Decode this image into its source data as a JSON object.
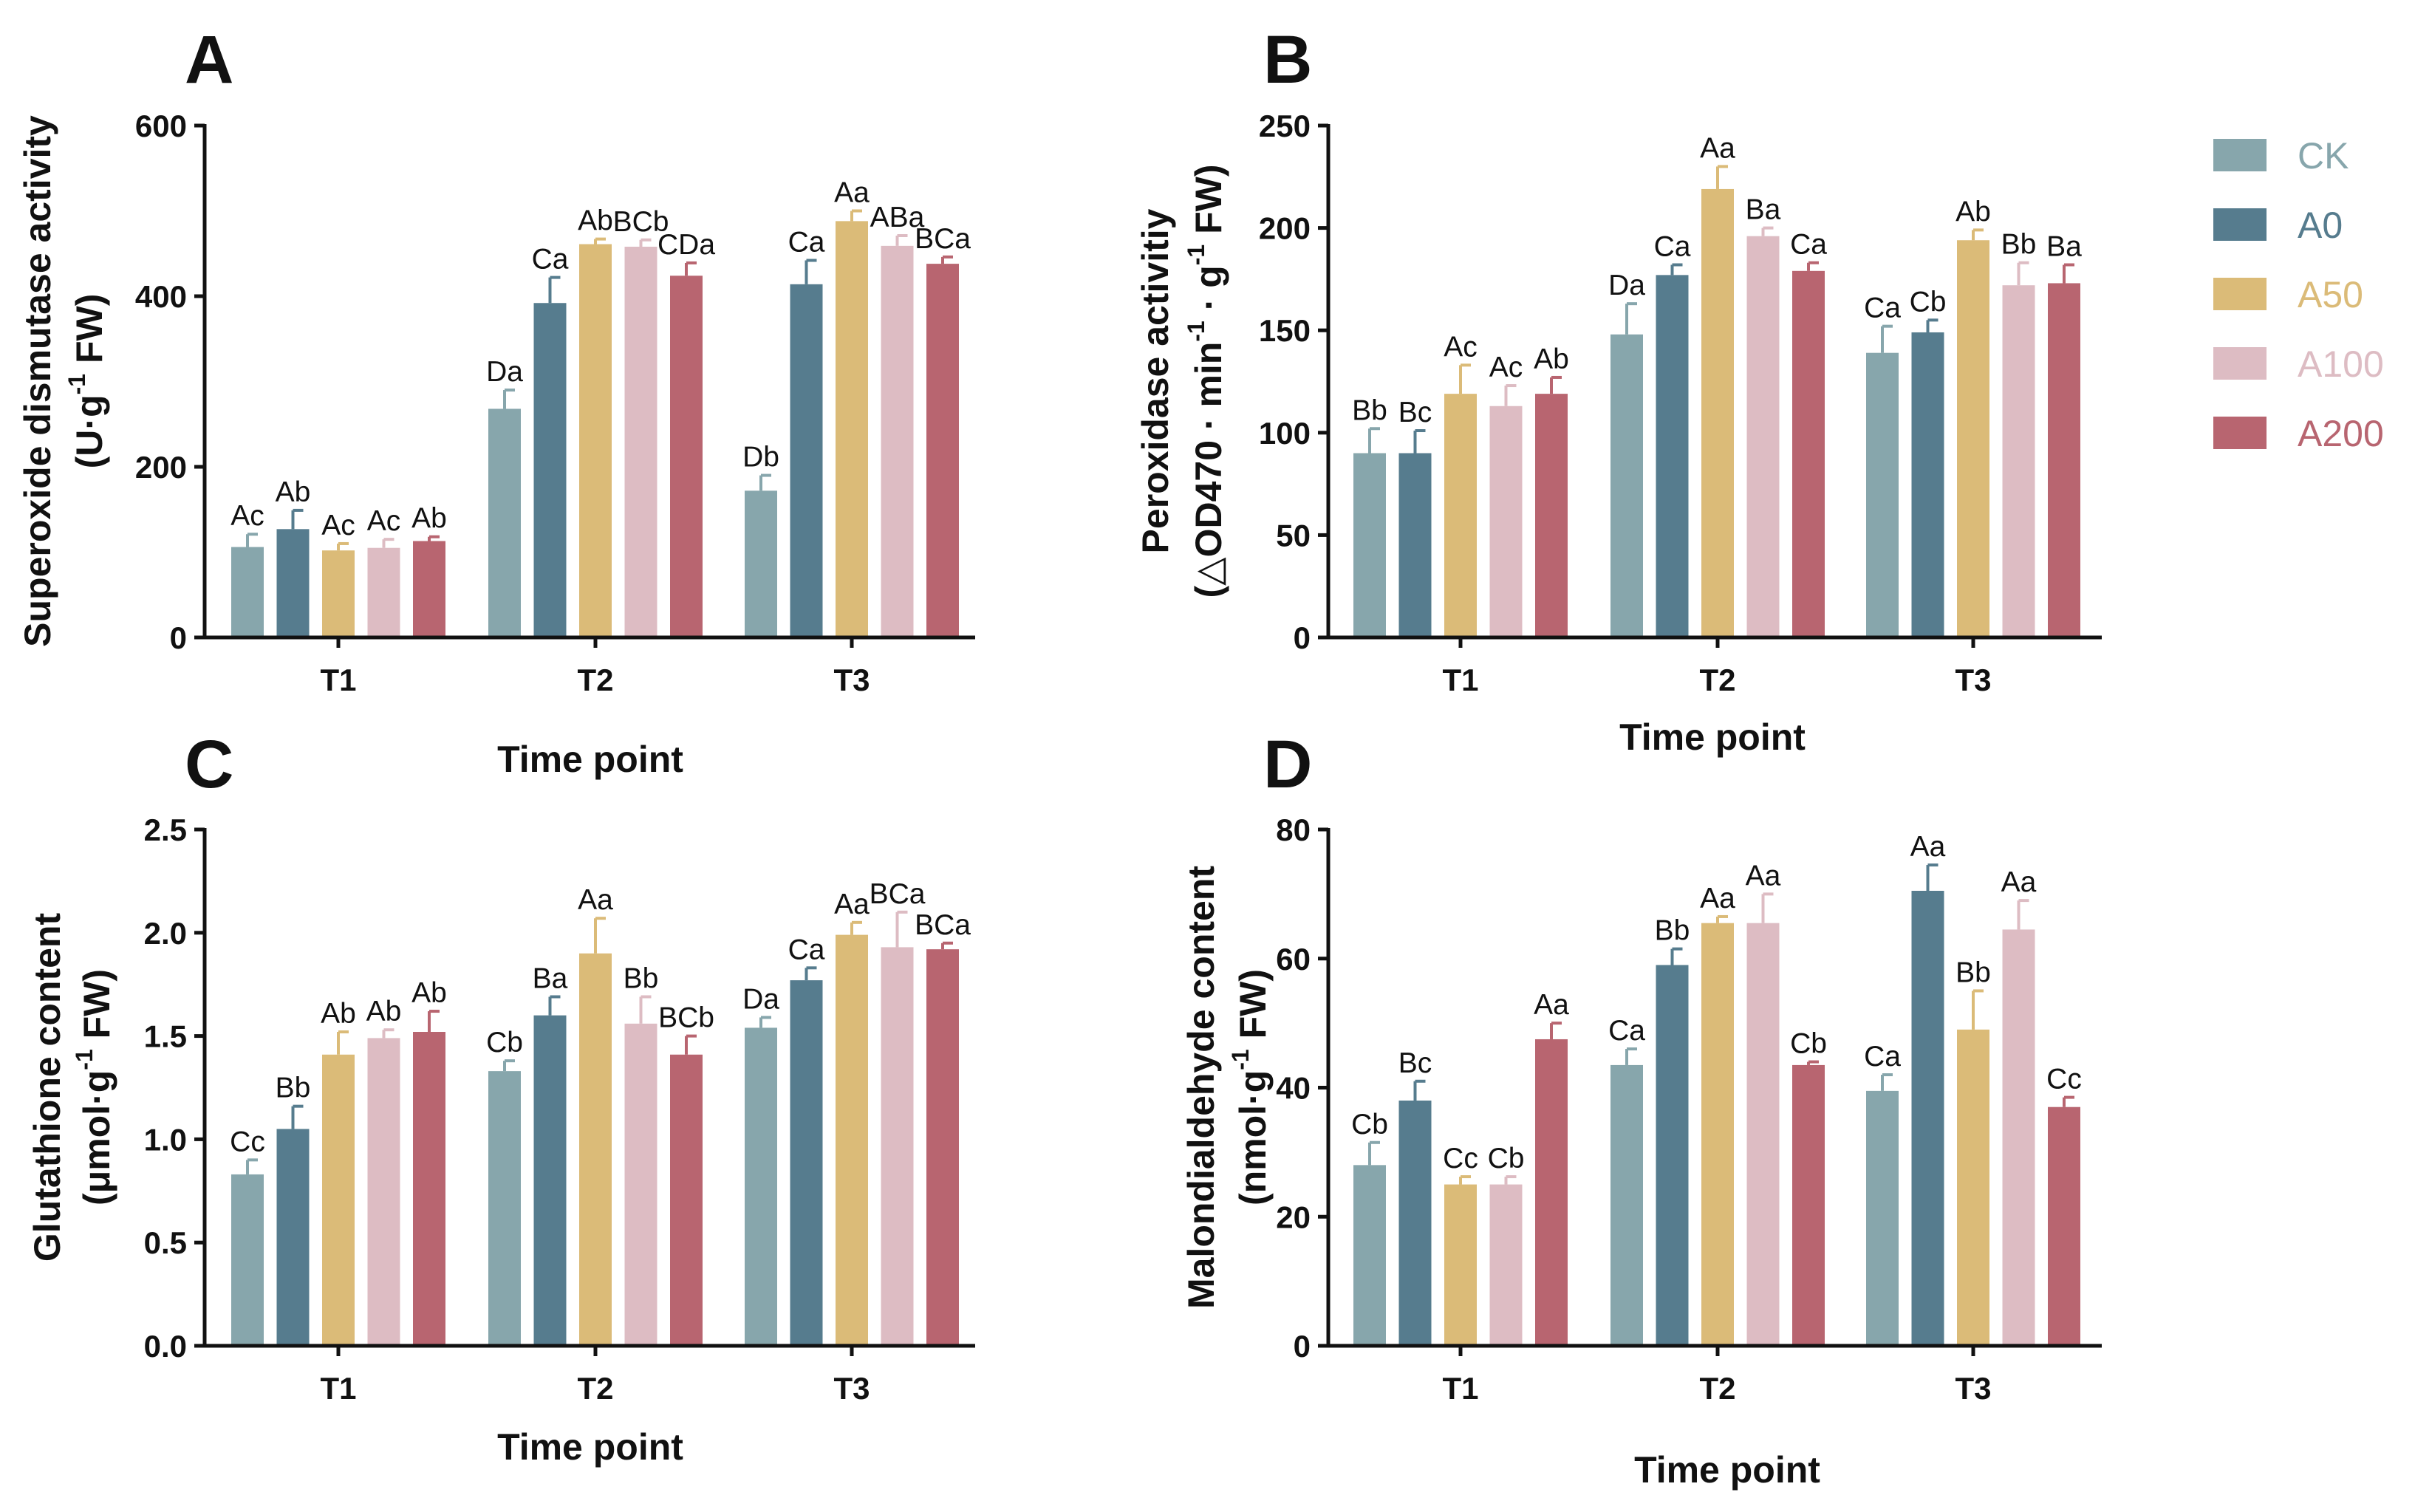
{
  "series_names": [
    "CK",
    "A0",
    "A50",
    "A100",
    "A200"
  ],
  "series_colors": [
    "#87a6ac",
    "#567c8e",
    "#dbbb78",
    "#ddbcc3",
    "#b86570"
  ],
  "chart_data": [
    {
      "type": "bar",
      "panel": "A",
      "title": "",
      "xlabel": "Time point",
      "ylabel_line1": "Superoxide dismutase activity",
      "ylabel_line2": {
        "pre": "(U·g",
        "sup": "-1",
        "post": " FW)"
      },
      "categories": [
        "T1",
        "T2",
        "T3"
      ],
      "ylim": [
        0,
        600
      ],
      "yticks": [
        0,
        200,
        400,
        600
      ],
      "ytick_labels": [
        "0",
        "200",
        "400",
        "600"
      ],
      "series": [
        {
          "name": "CK",
          "values": [
            106,
            268,
            172
          ],
          "errors": [
            15,
            22,
            18
          ],
          "labels": [
            "Ac",
            "Da",
            "Db"
          ]
        },
        {
          "name": "A0",
          "values": [
            127,
            392,
            414
          ],
          "errors": [
            22,
            30,
            28
          ],
          "labels": [
            "Ab",
            "Ca",
            "Ca"
          ]
        },
        {
          "name": "A50",
          "values": [
            102,
            461,
            488
          ],
          "errors": [
            8,
            6,
            12
          ],
          "labels": [
            "Ac",
            "Ab",
            "Aa"
          ]
        },
        {
          "name": "A100",
          "values": [
            105,
            458,
            459
          ],
          "errors": [
            10,
            8,
            12
          ],
          "labels": [
            "Ac",
            "BCb",
            "ABa"
          ]
        },
        {
          "name": "A200",
          "values": [
            113,
            424,
            438
          ],
          "errors": [
            5,
            15,
            8
          ],
          "labels": [
            "Ab",
            "CDa",
            "BCa"
          ]
        }
      ]
    },
    {
      "type": "bar",
      "panel": "B",
      "title": "",
      "xlabel": "Time point",
      "ylabel_line1": "Peroxidase activitiy",
      "ylabel_line2": {
        "pre": "(△OD470 · min",
        "sup": "-1",
        "mid": " · g",
        "sup2": "-1",
        "post": " FW)"
      },
      "categories": [
        "T1",
        "T2",
        "T3"
      ],
      "ylim": [
        0,
        250
      ],
      "yticks": [
        0,
        50,
        100,
        150,
        200,
        250
      ],
      "ytick_labels": [
        "0",
        "50",
        "100",
        "150",
        "200",
        "250"
      ],
      "series": [
        {
          "name": "CK",
          "values": [
            90,
            148,
            139
          ],
          "errors": [
            12,
            15,
            13
          ],
          "labels": [
            "Bb",
            "Da",
            "Ca"
          ]
        },
        {
          "name": "A0",
          "values": [
            90,
            177,
            149
          ],
          "errors": [
            11,
            5,
            6
          ],
          "labels": [
            "Bc",
            "Ca",
            "Cb"
          ]
        },
        {
          "name": "A50",
          "values": [
            119,
            219,
            194
          ],
          "errors": [
            14,
            11,
            5
          ],
          "labels": [
            "Ac",
            "Aa",
            "Ab"
          ]
        },
        {
          "name": "A100",
          "values": [
            113,
            196,
            172
          ],
          "errors": [
            10,
            4,
            11
          ],
          "labels": [
            "Ac",
            "Ba",
            "Bb"
          ]
        },
        {
          "name": "A200",
          "values": [
            119,
            179,
            173
          ],
          "errors": [
            8,
            4,
            9
          ],
          "labels": [
            "Ab",
            "Ca",
            "Ba"
          ]
        }
      ]
    },
    {
      "type": "bar",
      "panel": "C",
      "title": "",
      "xlabel": "Time point",
      "ylabel_line1": "Glutathione content",
      "ylabel_line2": {
        "pre": "(μmol·g",
        "sup": "-1",
        "post": " FW)"
      },
      "categories": [
        "T1",
        "T2",
        "T3"
      ],
      "ylim": [
        0,
        2.5
      ],
      "yticks": [
        0,
        0.5,
        1.0,
        1.5,
        2.0,
        2.5
      ],
      "ytick_labels": [
        "0.0",
        "0.5",
        "1.0",
        "1.5",
        "2.0",
        "2.5"
      ],
      "series": [
        {
          "name": "CK",
          "values": [
            0.83,
            1.33,
            1.54
          ],
          "errors": [
            0.07,
            0.05,
            0.05
          ],
          "labels": [
            "Cc",
            "Cb",
            "Da"
          ]
        },
        {
          "name": "A0",
          "values": [
            1.05,
            1.6,
            1.77
          ],
          "errors": [
            0.11,
            0.09,
            0.06
          ],
          "labels": [
            "Bb",
            "Ba",
            "Ca"
          ]
        },
        {
          "name": "A50",
          "values": [
            1.41,
            1.9,
            1.99
          ],
          "errors": [
            0.11,
            0.17,
            0.06
          ],
          "labels": [
            "Ab",
            "Aa",
            "Aa"
          ]
        },
        {
          "name": "A100",
          "values": [
            1.49,
            1.56,
            1.93
          ],
          "errors": [
            0.04,
            0.13,
            0.17
          ],
          "labels": [
            "Ab",
            "Bb",
            "BCa"
          ]
        },
        {
          "name": "A200",
          "values": [
            1.52,
            1.41,
            1.92
          ],
          "errors": [
            0.1,
            0.09,
            0.03
          ],
          "labels": [
            "Ab",
            "BCb",
            "BCa"
          ]
        }
      ]
    },
    {
      "type": "bar",
      "panel": "D",
      "title": "",
      "xlabel": "Time point",
      "ylabel_line1": "Malondialdehyde content",
      "ylabel_line2": {
        "pre": "(nmol·g",
        "sup": "-1",
        "post": " FW)"
      },
      "categories": [
        "T1",
        "T2",
        "T3"
      ],
      "ylim": [
        0,
        80
      ],
      "yticks": [
        0,
        20,
        40,
        60,
        80
      ],
      "ytick_labels": [
        "0",
        "20",
        "40",
        "60",
        "80"
      ],
      "series": [
        {
          "name": "CK",
          "values": [
            28,
            43.5,
            39.5
          ],
          "errors": [
            3.5,
            2.5,
            2.5
          ],
          "labels": [
            "Cb",
            "Ca",
            "Ca"
          ]
        },
        {
          "name": "A0",
          "values": [
            38,
            59,
            70.5
          ],
          "errors": [
            3,
            2.5,
            4
          ],
          "labels": [
            "Bc",
            "Bb",
            "Aa"
          ]
        },
        {
          "name": "A50",
          "values": [
            25,
            65.5,
            49
          ],
          "errors": [
            1.2,
            1,
            6
          ],
          "labels": [
            "Cc",
            "Aa",
            "Bb"
          ]
        },
        {
          "name": "A100",
          "values": [
            25,
            65.5,
            64.5
          ],
          "errors": [
            1.2,
            4.5,
            4.5
          ],
          "labels": [
            "Cb",
            "Aa",
            "Aa"
          ]
        },
        {
          "name": "A200",
          "values": [
            47.5,
            43.5,
            37
          ],
          "errors": [
            2.5,
            0.5,
            1.5
          ],
          "labels": [
            "Aa",
            "Cb",
            "Cc"
          ]
        }
      ]
    }
  ]
}
